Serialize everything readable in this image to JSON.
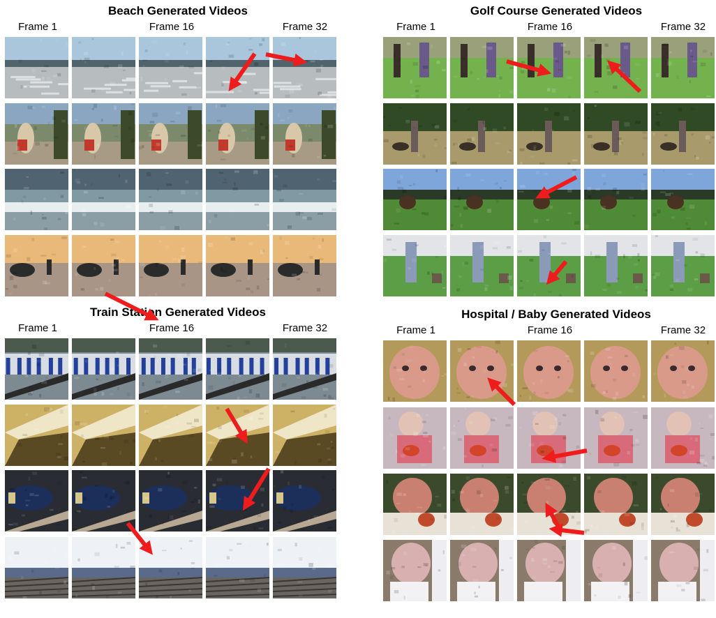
{
  "panels": [
    {
      "title": "Beach Generated Videos",
      "frame_labels": [
        "Frame 1",
        "Frame 16",
        "Frame 32"
      ],
      "palette": [
        "#9ab8d0",
        "#7f8f96",
        "#5f6d72",
        "#e9b779"
      ],
      "rows": [
        "beach-waves",
        "beach-people",
        "beach-surf",
        "beach-sunset"
      ]
    },
    {
      "title": "Golf Course Generated Videos",
      "frame_labels": [
        "Frame 1",
        "Frame 16",
        "Frame 32"
      ],
      "palette": [
        "#6aa04a",
        "#4e7a3a",
        "#5f9a3e",
        "#62a14e"
      ],
      "rows": [
        "golf-players",
        "golf-dog",
        "golf-field",
        "golf-child"
      ]
    },
    {
      "title": "Train Station Generated Videos",
      "frame_labels": [
        "Frame 1",
        "Frame 16",
        "Frame 32"
      ],
      "palette": [
        "#5b6b7a",
        "#c9a24a",
        "#3a3c45",
        "#9aa8b8"
      ],
      "rows": [
        "platform",
        "blur",
        "train",
        "tracks"
      ]
    },
    {
      "title": "Hospital / Baby Generated Videos",
      "frame_labels": [
        "Frame 1",
        "Frame 16",
        "Frame 32"
      ],
      "palette": [
        "#c98a7a",
        "#c0a8b4",
        "#7a4a36",
        "#9a8a7a"
      ],
      "rows": [
        "baby-face",
        "baby-blanket",
        "baby-red",
        "baby-white"
      ]
    }
  ]
}
